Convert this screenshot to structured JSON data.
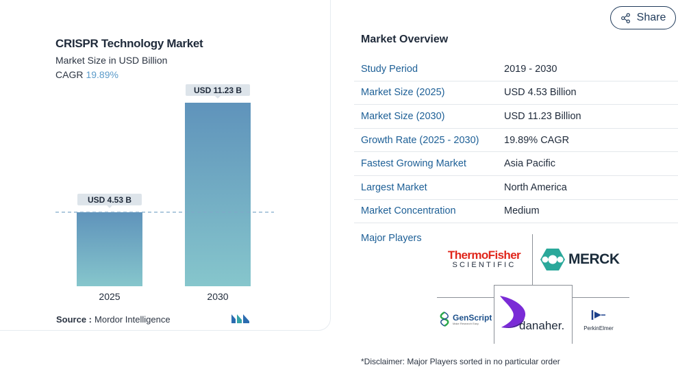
{
  "card": {
    "title": "CRISPR Technology Market",
    "subtitle": "Market Size in USD Billion",
    "cagr_label": "CAGR",
    "cagr_value": "19.89%",
    "source_label": "Source :",
    "source_value": "Mordor Intelligence"
  },
  "chart_data": {
    "type": "bar",
    "title": "CRISPR Technology Market",
    "subtitle": "Market Size in USD Billion",
    "categories": [
      "2025",
      "2030"
    ],
    "values": [
      4.53,
      11.23
    ],
    "data_labels": [
      "USD 4.53 B",
      "USD 11.23 B"
    ],
    "xlabel": "",
    "ylabel": "",
    "ylim": [
      0,
      11.23
    ],
    "grid": false,
    "colors": {
      "bar_top": "#5f93bb",
      "bar_bottom": "#86c6cc",
      "label_bg": "#dde4ea",
      "ref_line": "#7fa9c9"
    }
  },
  "share": {
    "label": "Share",
    "icon": "share-icon"
  },
  "overview": {
    "title": "Market Overview",
    "rows": [
      {
        "key": "Study Period",
        "value": "2019 - 2030"
      },
      {
        "key": "Market Size (2025)",
        "value": "USD 4.53 Billion"
      },
      {
        "key": "Market Size (2030)",
        "value": "USD 11.23 Billion"
      },
      {
        "key": "Growth Rate (2025 - 2030)",
        "value": "19.89% CAGR"
      },
      {
        "key": "Fastest Growing Market",
        "value": "Asia Pacific"
      },
      {
        "key": "Largest Market",
        "value": "North America"
      },
      {
        "key": "Market Concentration",
        "value": "Medium"
      }
    ],
    "major_players_label": "Major Players"
  },
  "players": {
    "thermo_line1": "ThermoFisher",
    "thermo_line2": "SCIENTIFIC",
    "merck": "MERCK",
    "genscript": "GenScript",
    "genscript_tag": "Make Research Easy",
    "danaher": "danaher.",
    "perkin": "PerkinElmer"
  },
  "disclaimer": "*Disclaimer: Major Players sorted in no particular order",
  "colors": {
    "accent": "#1d5f96",
    "cagr": "#5a9ac9",
    "thermo_red": "#e0261b",
    "merck_teal": "#2aa89a"
  }
}
